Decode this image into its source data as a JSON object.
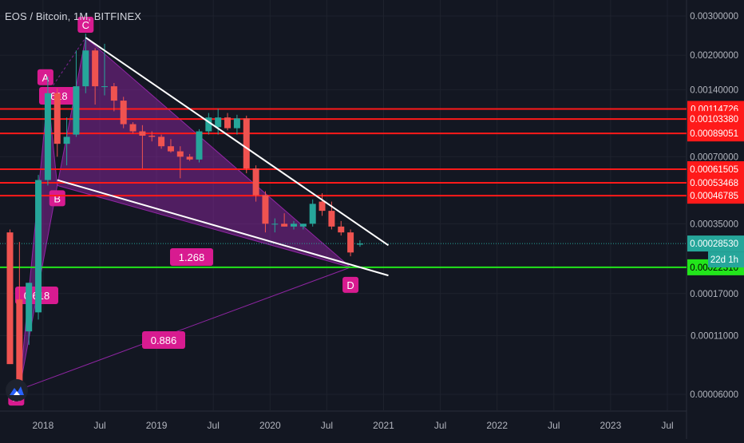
{
  "header": {
    "title": "EOS / Bitcoin, 1M, BITFINEX"
  },
  "colors": {
    "background": "#131722",
    "grid": "#1e222d",
    "axis_text": "#b2b5be",
    "bull": "#26a69a",
    "bear": "#ef5350",
    "pattern_fill": "#9c27b0",
    "pattern_label": "#d81b90",
    "resistance": "#ff1a1a",
    "support": "#22e51b",
    "trendline": "#ffffff",
    "current_price": "#26a69a"
  },
  "chart_data": {
    "type": "candlestick",
    "symbol": "EOS / Bitcoin",
    "interval": "1M",
    "exchange": "BITFINEX",
    "y_scale": "log",
    "ylim": [
      5.2e-05,
      0.0034
    ],
    "xlim": [
      "2017-09",
      "2023-11"
    ],
    "grid": true,
    "x_ticks": [
      "2018",
      "Jul",
      "2019",
      "Jul",
      "2020",
      "Jul",
      "2021",
      "Jul",
      "2022",
      "Jul",
      "2023",
      "Jul"
    ],
    "y_ticks": [
      "0.00300000",
      "0.00200000",
      "0.00140000",
      "0.00070000",
      "0.00035000",
      "0.00017000",
      "0.00011000",
      "0.00006000"
    ],
    "candles": [
      {
        "t": "2017-09",
        "o": 0.00032,
        "h": 0.00033,
        "l": 9.2e-05,
        "c": 8.2e-05
      },
      {
        "t": "2017-10",
        "o": 0.00016,
        "h": 0.00029,
        "l": 7.5e-05,
        "c": 6.2e-05
      },
      {
        "t": "2017-11",
        "o": 0.000115,
        "h": 0.00019,
        "l": 0.0001,
        "c": 0.00019
      },
      {
        "t": "2017-12",
        "o": 0.00014,
        "h": 0.00058,
        "l": 0.00013,
        "c": 0.00055
      },
      {
        "t": "2018-01",
        "o": 0.00055,
        "h": 0.0016,
        "l": 0.00052,
        "c": 0.00135
      },
      {
        "t": "2018-02",
        "o": 0.00135,
        "h": 0.00142,
        "l": 0.0007,
        "c": 0.0008
      },
      {
        "t": "2018-03",
        "o": 0.0008,
        "h": 0.00105,
        "l": 0.00064,
        "c": 0.00086
      },
      {
        "t": "2018-04",
        "o": 0.00088,
        "h": 0.0021,
        "l": 0.00086,
        "c": 0.00145
      },
      {
        "t": "2018-05",
        "o": 0.00145,
        "h": 0.0025,
        "l": 0.00135,
        "c": 0.0021
      },
      {
        "t": "2018-06",
        "o": 0.0021,
        "h": 0.00215,
        "l": 0.0012,
        "c": 0.00145
      },
      {
        "t": "2018-07",
        "o": 0.00145,
        "h": 0.00225,
        "l": 0.00132,
        "c": 0.00145
      },
      {
        "t": "2018-08",
        "o": 0.00145,
        "h": 0.0015,
        "l": 0.00112,
        "c": 0.00125
      },
      {
        "t": "2018-09",
        "o": 0.00125,
        "h": 0.0013,
        "l": 0.00094,
        "c": 0.00098
      },
      {
        "t": "2018-10",
        "o": 0.00098,
        "h": 0.001,
        "l": 0.00089,
        "c": 0.00091
      },
      {
        "t": "2018-11",
        "o": 0.00091,
        "h": 0.00097,
        "l": 0.00062,
        "c": 0.00087
      },
      {
        "t": "2018-12",
        "o": 0.00087,
        "h": 0.00091,
        "l": 0.00082,
        "c": 0.00086
      },
      {
        "t": "2019-01",
        "o": 0.00086,
        "h": 0.00088,
        "l": 0.00076,
        "c": 0.00078
      },
      {
        "t": "2019-02",
        "o": 0.00078,
        "h": 0.00084,
        "l": 0.00073,
        "c": 0.00074
      },
      {
        "t": "2019-03",
        "o": 0.00074,
        "h": 0.00078,
        "l": 0.00056,
        "c": 0.0007
      },
      {
        "t": "2019-04",
        "o": 0.0007,
        "h": 0.00072,
        "l": 0.00067,
        "c": 0.00068
      },
      {
        "t": "2019-05",
        "o": 0.00068,
        "h": 0.00093,
        "l": 0.00066,
        "c": 0.00091
      },
      {
        "t": "2019-06",
        "o": 0.00091,
        "h": 0.0011,
        "l": 0.00088,
        "c": 0.00105
      },
      {
        "t": "2019-07",
        "o": 0.00095,
        "h": 0.00115,
        "l": 0.00088,
        "c": 0.00105
      },
      {
        "t": "2019-08",
        "o": 0.00105,
        "h": 0.0011,
        "l": 0.00092,
        "c": 0.00094
      },
      {
        "t": "2019-09",
        "o": 0.00094,
        "h": 0.00108,
        "l": 0.00088,
        "c": 0.00104
      },
      {
        "t": "2019-10",
        "o": 0.00104,
        "h": 0.00107,
        "l": 0.00059,
        "c": 0.00062
      },
      {
        "t": "2019-11",
        "o": 0.00062,
        "h": 0.00064,
        "l": 0.00044,
        "c": 0.00047
      },
      {
        "t": "2019-12",
        "o": 0.00047,
        "h": 0.00049,
        "l": 0.00032,
        "c": 0.00035
      },
      {
        "t": "2020-01",
        "o": 0.00035,
        "h": 0.00037,
        "l": 0.00032,
        "c": 0.00035
      },
      {
        "t": "2020-02",
        "o": 0.00035,
        "h": 0.00039,
        "l": 0.00034,
        "c": 0.00034
      },
      {
        "t": "2020-03",
        "o": 0.00034,
        "h": 0.00036,
        "l": 0.00033,
        "c": 0.00035
      },
      {
        "t": "2020-04",
        "o": 0.00034,
        "h": 0.00035,
        "l": 0.00033,
        "c": 0.00035
      },
      {
        "t": "2020-05",
        "o": 0.00035,
        "h": 0.00045,
        "l": 0.00034,
        "c": 0.00043
      },
      {
        "t": "2020-06",
        "o": 0.00044,
        "h": 0.00048,
        "l": 0.00038,
        "c": 0.0004
      },
      {
        "t": "2020-07",
        "o": 0.0004,
        "h": 0.00044,
        "l": 0.00033,
        "c": 0.00034
      },
      {
        "t": "2020-08",
        "o": 0.00034,
        "h": 0.00036,
        "l": 0.00031,
        "c": 0.00032
      },
      {
        "t": "2020-09",
        "o": 0.00032,
        "h": 0.00033,
        "l": 0.00025,
        "c": 0.00026
      },
      {
        "t": "2020-10",
        "o": 0.000282,
        "h": 0.000295,
        "l": 0.000276,
        "c": 0.0002853
      }
    ],
    "horizontal_levels": [
      {
        "price": 0.00114726,
        "label": "0.00114726",
        "color": "#ff1a1a"
      },
      {
        "price": 0.0010338,
        "label": "0.00103380",
        "color": "#ff1a1a"
      },
      {
        "price": 0.00089051,
        "label": "0.00089051",
        "color": "#ff1a1a"
      },
      {
        "price": 0.00061505,
        "label": "0.00061505",
        "color": "#ff1a1a"
      },
      {
        "price": 0.00053468,
        "label": "0.00053468",
        "color": "#ff1a1a"
      },
      {
        "price": 0.00046785,
        "label": "0.00046785",
        "color": "#ff1a1a"
      },
      {
        "price": 0.0002231,
        "label": "0.00022310",
        "color": "#22e51b"
      }
    ],
    "current_price": {
      "price": 0.0002853,
      "label": "0.00028530",
      "countdown": "22d 1h"
    },
    "harmonic_pattern": {
      "points": [
        {
          "name": "X",
          "t": "2017-10",
          "price": 6.3e-05
        },
        {
          "name": "A",
          "t": "2018-01",
          "price": 0.00135
        },
        {
          "name": "B",
          "t": "2018-02",
          "price": 0.00052
        },
        {
          "name": "C",
          "t": "2018-05",
          "price": 0.0024
        },
        {
          "name": "D",
          "t": "2020-09",
          "price": 0.0002231
        }
      ],
      "ratios": [
        {
          "label": ".618",
          "from": "X",
          "to": "B"
        },
        {
          "label": "1.268",
          "from": "B",
          "to": "D"
        },
        {
          "label": "0.618",
          "from": "X",
          "to": "B"
        },
        {
          "label": "0.886",
          "from": "X",
          "to": "D"
        }
      ]
    },
    "trendlines": [
      {
        "from": {
          "t": "2018-05",
          "price": 0.0024
        },
        "to": {
          "t": "2021-01",
          "price": 0.00028
        }
      },
      {
        "from": {
          "t": "2018-02",
          "price": 0.00055
        },
        "to": {
          "t": "2021-01",
          "price": 0.000205
        }
      }
    ]
  }
}
